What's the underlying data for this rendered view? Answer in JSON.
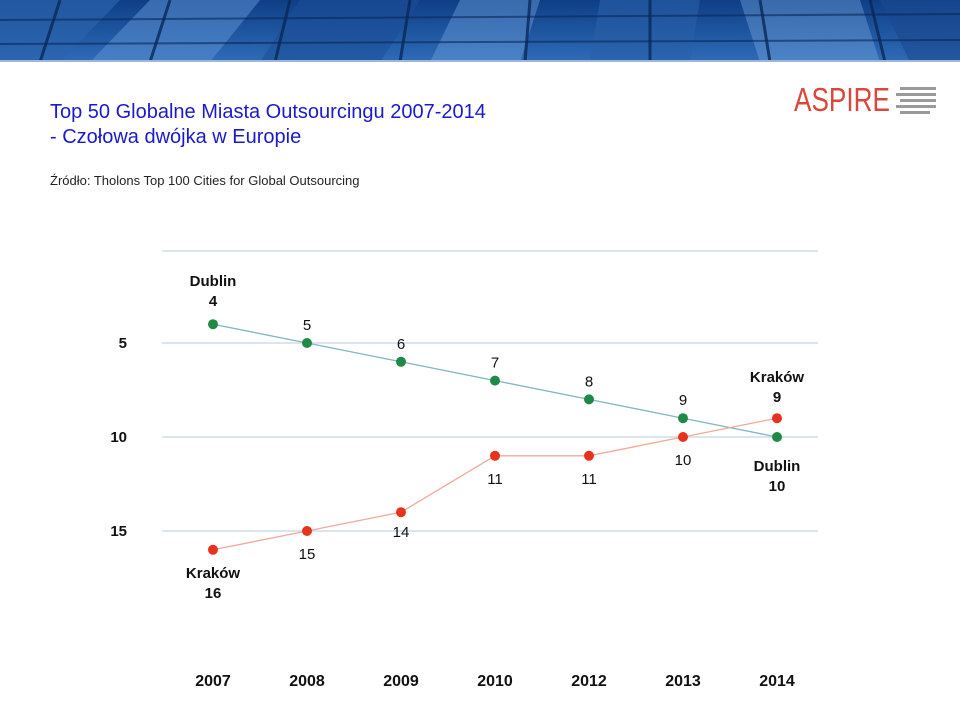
{
  "header": {
    "title_line1": "Top 50 Globalne Miasta Outsourcingu 2007-2014",
    "title_line2": "- Czołowa dwójka w Europie",
    "source": "Źródło: Tholons Top 100 Cities for Global Outsourcing",
    "logo_text": "ASPIRE"
  },
  "colors": {
    "title": "#1a1acc",
    "dublin": "#1e8a46",
    "krakow": "#e8321e",
    "logo": "#d9483b"
  },
  "chart_data": {
    "type": "line",
    "title": "Top 50 Globalne Miasta Outsourcingu 2007-2014",
    "xlabel": "",
    "ylabel": "",
    "categories": [
      "2007",
      "2008",
      "2009",
      "2010",
      "2012",
      "2013",
      "2014"
    ],
    "y_axis": {
      "inverted": true,
      "ticks": [
        5,
        10,
        15
      ],
      "ylim": [
        1,
        16
      ]
    },
    "grid": true,
    "series": [
      {
        "name": "Dublin",
        "values": [
          4,
          5,
          6,
          7,
          8,
          9,
          10
        ],
        "labels": [
          "4",
          "5",
          "6",
          "7",
          "8",
          "9",
          "10"
        ],
        "label_side": "above"
      },
      {
        "name": "Kraków",
        "values": [
          16,
          15,
          14,
          11,
          11,
          10,
          9
        ],
        "labels": [
          "16",
          "15",
          "14",
          "11",
          "11",
          "10",
          "9"
        ],
        "label_side": "below"
      }
    ],
    "endpoint_labels": [
      {
        "series": "Dublin",
        "index": 0,
        "text": "Dublin",
        "value": "4"
      },
      {
        "series": "Dublin",
        "index": 6,
        "text": "Dublin",
        "value": "10"
      },
      {
        "series": "Kraków",
        "index": 0,
        "text": "Kraków",
        "value": "16"
      },
      {
        "series": "Kraków",
        "index": 6,
        "text": "Kraków",
        "value": "9"
      }
    ]
  }
}
